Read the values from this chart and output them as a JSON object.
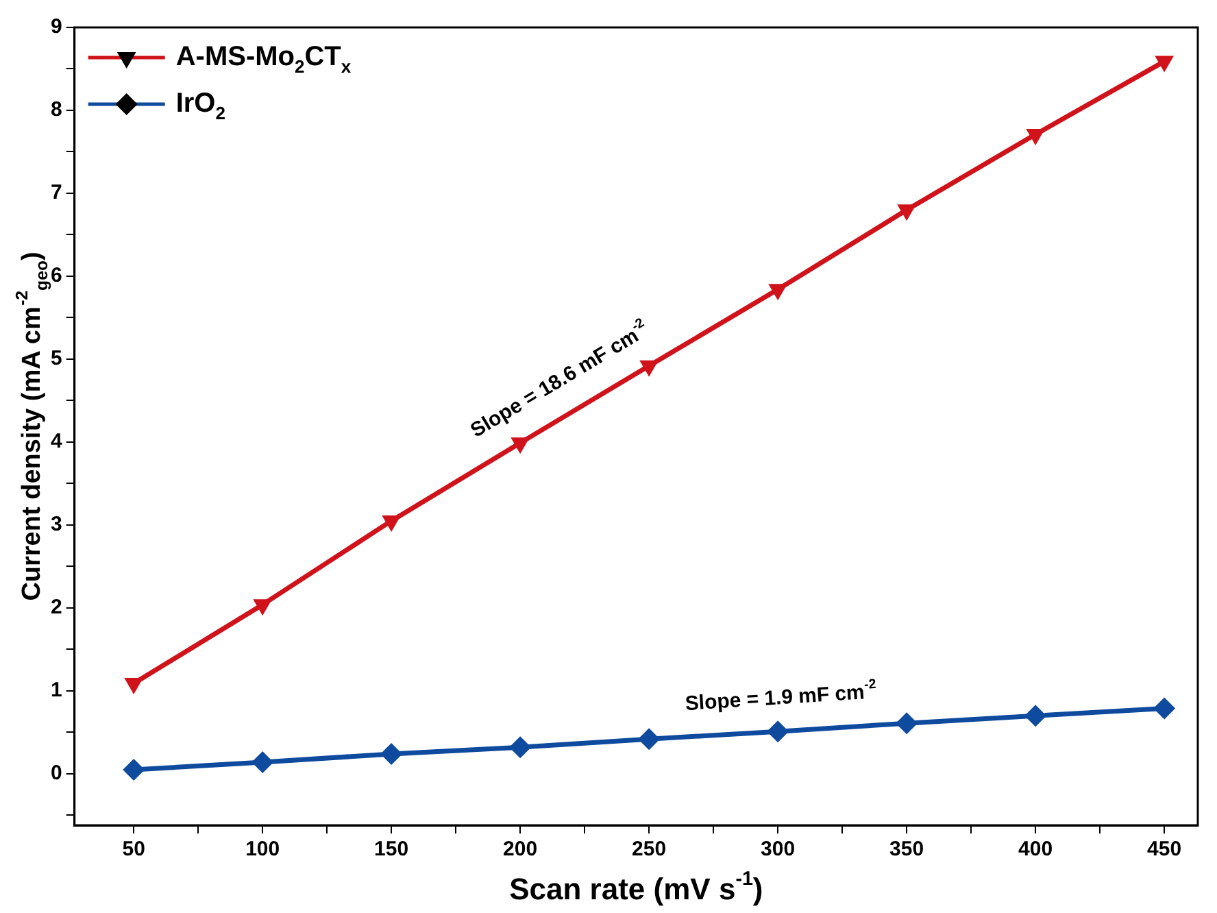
{
  "chart_data": {
    "type": "line",
    "xlabel": "Scan rate (mV s$^{-1}$)",
    "ylabel": "Current density (mA cm$^{-2}$$_{geo}$)",
    "x": [
      50,
      100,
      150,
      200,
      250,
      300,
      350,
      400,
      450
    ],
    "series": [
      {
        "name": "A-MS-Mo$_{2}$CT$_{x}$",
        "color": "#d0121b",
        "marker": "triangle",
        "values": [
          1.09,
          2.04,
          3.05,
          3.99,
          4.92,
          5.84,
          6.8,
          7.71,
          8.59
        ]
      },
      {
        "name": "IrO$_{2}$",
        "color": "#0e4a9e",
        "marker": "diamond",
        "values": [
          0.05,
          0.14,
          0.24,
          0.32,
          0.42,
          0.51,
          0.61,
          0.7,
          0.79
        ]
      }
    ],
    "annotations": [
      "Slope = 18.6 mF cm$^{-2}$",
      "Slope = 1.9 mF cm$^{-2}$"
    ],
    "xlim": [
      27,
      463
    ],
    "ylim": [
      -0.62,
      9
    ],
    "xticks": [
      50,
      {
        "value": 75,
        "label": null
      },
      100,
      {
        "value": 125,
        "label": null
      },
      150,
      {
        "value": 175,
        "label": null
      },
      200,
      {
        "value": 225,
        "label": null
      },
      250,
      {
        "value": 275,
        "label": null
      },
      300,
      {
        "value": 325,
        "label": null
      },
      350,
      {
        "value": 375,
        "label": null
      },
      400,
      {
        "value": 425,
        "label": null
      },
      450
    ],
    "yticks": [
      {
        "value": -0.5,
        "label": null
      },
      0,
      {
        "value": 0.5,
        "label": null
      },
      1,
      {
        "value": 1.5,
        "label": null
      },
      2,
      {
        "value": 2.5,
        "label": null
      },
      3,
      {
        "value": 3.5,
        "label": null
      },
      4,
      {
        "value": 4.5,
        "label": null
      },
      5,
      {
        "value": 5.5,
        "label": null
      },
      6,
      {
        "value": 6.5,
        "label": null
      },
      7,
      {
        "value": 7.5,
        "label": null
      },
      8,
      {
        "value": 8.5,
        "label": null
      },
      9
    ],
    "grid": false,
    "legend": "top left",
    "line_style": "solid"
  }
}
